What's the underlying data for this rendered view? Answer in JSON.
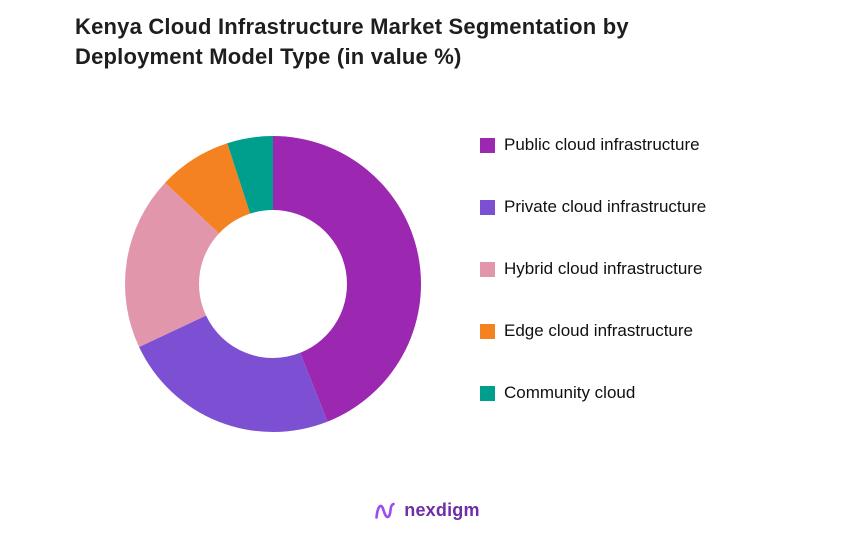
{
  "title": "Kenya Cloud Infrastructure Market Segmentation by Deployment Model Type (in value %)",
  "footer": {
    "brand": "nexdigm",
    "brand_color": "#6f2da8",
    "icon_color": "#9b4dee"
  },
  "chart_data": {
    "type": "pie",
    "subtype": "donut",
    "title": "Kenya Cloud Infrastructure Market Segmentation by Deployment Model Type (in value %)",
    "unit": "value %",
    "legend_position": "right",
    "start_angle_deg": 0,
    "direction": "clockwise",
    "inner_radius_ratio": 0.5,
    "segments": [
      {
        "label": "Public cloud infrastructure",
        "value": 44,
        "color": "#9c27b0"
      },
      {
        "label": "Private cloud infrastructure",
        "value": 24,
        "color": "#7d4fd3"
      },
      {
        "label": "Hybrid cloud infrastructure",
        "value": 19,
        "color": "#e296ac"
      },
      {
        "label": "Edge cloud infrastructure",
        "value": 8,
        "color": "#f58220"
      },
      {
        "label": "Community cloud",
        "value": 5,
        "color": "#009e8c"
      }
    ]
  }
}
